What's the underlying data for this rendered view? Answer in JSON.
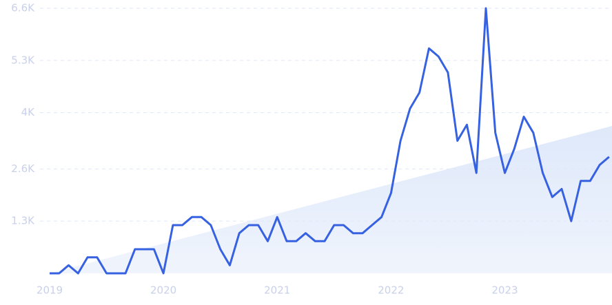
{
  "chart_data": {
    "type": "line",
    "categories": [
      "2019",
      null,
      null,
      null,
      null,
      null,
      null,
      null,
      null,
      null,
      null,
      null,
      "2020",
      null,
      null,
      null,
      null,
      null,
      null,
      null,
      null,
      null,
      null,
      null,
      "2021",
      null,
      null,
      null,
      null,
      null,
      null,
      null,
      null,
      null,
      null,
      null,
      "2022",
      null,
      null,
      null,
      null,
      null,
      null,
      null,
      null,
      null,
      null,
      null,
      "2023",
      null,
      null,
      null,
      null,
      null,
      null,
      null,
      null,
      null,
      null,
      null
    ],
    "series": [
      {
        "color": "#3661e0",
        "values": [
          0,
          0,
          200,
          0,
          400,
          400,
          0,
          0,
          0,
          600,
          600,
          600,
          0,
          1200,
          1200,
          1400,
          1400,
          1200,
          600,
          200,
          1000,
          1200,
          1200,
          800,
          1400,
          800,
          800,
          1000,
          800,
          800,
          1200,
          1200,
          1000,
          1000,
          1200,
          1400,
          2000,
          3300,
          4100,
          4500,
          5600,
          5400,
          5000,
          3300,
          3700,
          2500,
          6600,
          3500,
          2500,
          3100,
          3900,
          3500,
          2500,
          1900,
          2100,
          1300,
          2300,
          2300,
          2700,
          2900
        ]
      }
    ],
    "ylim": [
      0,
      6600
    ],
    "yticks": [
      {
        "value": 1300,
        "label": "1.3K"
      },
      {
        "value": 2600,
        "label": "2.6K"
      },
      {
        "value": 4000,
        "label": "4K"
      },
      {
        "value": 5300,
        "label": "5.3K"
      },
      {
        "value": 6600,
        "label": "6.6K"
      }
    ],
    "grid": true
  }
}
